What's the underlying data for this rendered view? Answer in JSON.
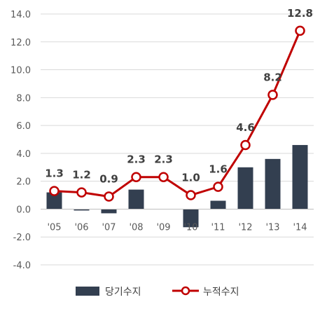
{
  "chart_data": {
    "type": "bar+line",
    "categories": [
      "'05",
      "'06",
      "'07",
      "'08",
      "'09",
      "'10",
      "'11",
      "'12",
      "'13",
      "'14"
    ],
    "series": [
      {
        "name": "당기수지",
        "type": "bar",
        "color": "#333f50",
        "values": [
          1.2,
          -0.1,
          -0.3,
          1.4,
          0.0,
          -1.3,
          0.6,
          3.0,
          3.6,
          4.6
        ]
      },
      {
        "name": "누적수지",
        "type": "line",
        "color": "#c00000",
        "values": [
          1.3,
          1.2,
          0.9,
          2.3,
          2.3,
          1.0,
          1.6,
          4.6,
          8.2,
          12.8
        ],
        "data_labels": [
          "1.3",
          "1.2",
          "0.9",
          "2.3",
          "2.3",
          "1.0",
          "1.6",
          "4.6",
          "8.2",
          "12.8"
        ]
      }
    ],
    "ylim": [
      -4.0,
      14.0
    ],
    "yticks": [
      "14.0",
      "12.0",
      "10.0",
      "8.0",
      "6.0",
      "4.0",
      "2.0",
      "0.0",
      "-2.0",
      "-4.0"
    ],
    "ytick_values": [
      14,
      12,
      10,
      8,
      6,
      4,
      2,
      0,
      -2,
      -4
    ],
    "grid": true,
    "legend_position": "bottom"
  }
}
